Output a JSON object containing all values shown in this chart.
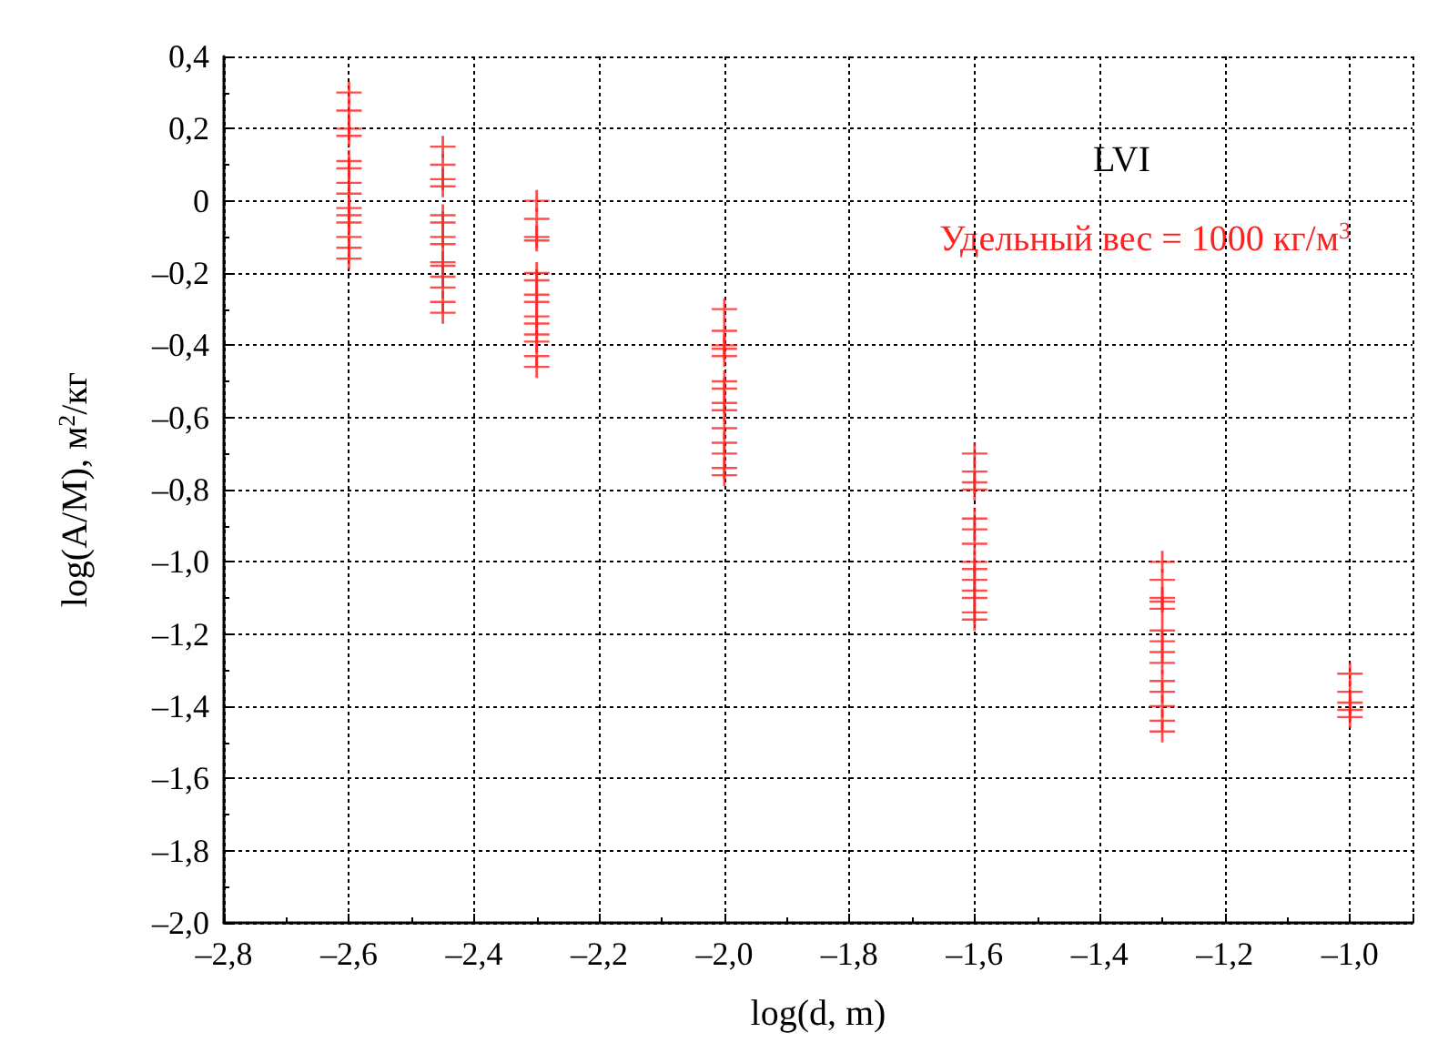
{
  "chart_data": {
    "type": "scatter",
    "xlabel": "log(d, m)",
    "ylabel": "log(A/M), м$^{2}$/кг",
    "annotations": [
      "LVI",
      "Удельный вес = 1000 кг/м$^{3}$"
    ],
    "marker": "cross",
    "grid": true,
    "xlim": [
      -2.8,
      -0.9
    ],
    "xticks": [
      {
        "value": -2.8,
        "label": "–2,8"
      },
      {
        "value": -2.6,
        "label": "–2,6"
      },
      {
        "value": -2.4,
        "label": "–2,4"
      },
      {
        "value": -2.2,
        "label": "–2,2"
      },
      {
        "value": -2.0,
        "label": "–2,0"
      },
      {
        "value": -1.8,
        "label": "–1,8"
      },
      {
        "value": -1.6,
        "label": "–1,6"
      },
      {
        "value": -1.4,
        "label": "–1,4"
      },
      {
        "value": -1.2,
        "label": "–1,2"
      },
      {
        "value": -1.0,
        "label": "–1,0"
      }
    ],
    "ylim": [
      -2.0,
      0.4
    ],
    "yticks": [
      {
        "value": -2.0,
        "label": "–2,0"
      },
      {
        "value": -1.8,
        "label": "–1,8"
      },
      {
        "value": -1.6,
        "label": "–1,6"
      },
      {
        "value": -1.4,
        "label": "–1,4"
      },
      {
        "value": -1.2,
        "label": "–1,2"
      },
      {
        "value": -1.0,
        "label": "–1,0"
      },
      {
        "value": -0.8,
        "label": "–0,8"
      },
      {
        "value": -0.6,
        "label": "–0,6"
      },
      {
        "value": -0.4,
        "label": "–0,4"
      },
      {
        "value": -0.2,
        "label": "–0,2"
      },
      {
        "value": 0,
        "label": "0"
      },
      {
        "value": 0.2,
        "label": "0,2"
      },
      {
        "value": 0.4,
        "label": "0,4"
      }
    ],
    "series": [
      {
        "color": "#ff2020",
        "x": [
          -2.6,
          -2.6,
          -2.6,
          -2.6,
          -2.6,
          -2.6,
          -2.6,
          -2.6,
          -2.6,
          -2.6,
          -2.6,
          -2.6,
          -2.6,
          -2.6,
          -2.45,
          -2.45,
          -2.45,
          -2.45,
          -2.45,
          -2.45,
          -2.45,
          -2.45,
          -2.45,
          -2.45,
          -2.45,
          -2.45,
          -2.45,
          -2.45,
          -2.3,
          -2.3,
          -2.3,
          -2.3,
          -2.3,
          -2.3,
          -2.3,
          -2.3,
          -2.3,
          -2.3,
          -2.3,
          -2.3,
          -2.3,
          -2.3,
          -2.0,
          -2.0,
          -2.0,
          -2.0,
          -2.0,
          -2.0,
          -2.0,
          -2.0,
          -2.0,
          -2.0,
          -2.0,
          -2.0,
          -2.0,
          -2.0,
          -1.6,
          -1.6,
          -1.6,
          -1.6,
          -1.6,
          -1.6,
          -1.6,
          -1.6,
          -1.6,
          -1.6,
          -1.6,
          -1.6,
          -1.6,
          -1.6,
          -1.3,
          -1.3,
          -1.3,
          -1.3,
          -1.3,
          -1.3,
          -1.3,
          -1.3,
          -1.3,
          -1.3,
          -1.3,
          -1.3,
          -1.3,
          -1.3,
          -1.0,
          -1.0,
          -1.0,
          -1.0,
          -1.0
        ],
        "values": [
          0.3,
          0.25,
          0.2,
          0.18,
          0.11,
          0.09,
          0.05,
          0.02,
          -0.02,
          -0.04,
          -0.06,
          -0.1,
          -0.13,
          -0.16,
          0.15,
          0.1,
          0.06,
          0.04,
          -0.04,
          -0.06,
          -0.1,
          -0.12,
          -0.17,
          -0.18,
          -0.21,
          -0.24,
          -0.28,
          -0.31,
          0.0,
          -0.05,
          -0.1,
          -0.11,
          -0.2,
          -0.22,
          -0.26,
          -0.28,
          -0.32,
          -0.34,
          -0.37,
          -0.39,
          -0.43,
          -0.46,
          -0.3,
          -0.36,
          -0.4,
          -0.41,
          -0.43,
          -0.5,
          -0.52,
          -0.56,
          -0.58,
          -0.63,
          -0.67,
          -0.7,
          -0.74,
          -0.76,
          -0.7,
          -0.75,
          -0.78,
          -0.8,
          -0.88,
          -0.91,
          -0.95,
          -1.0,
          -1.02,
          -1.05,
          -1.08,
          -1.1,
          -1.14,
          -1.16,
          -1.0,
          -1.05,
          -1.1,
          -1.11,
          -1.13,
          -1.19,
          -1.22,
          -1.25,
          -1.28,
          -1.33,
          -1.36,
          -1.4,
          -1.44,
          -1.47,
          -1.31,
          -1.36,
          -1.39,
          -1.41,
          -1.43
        ]
      }
    ]
  }
}
